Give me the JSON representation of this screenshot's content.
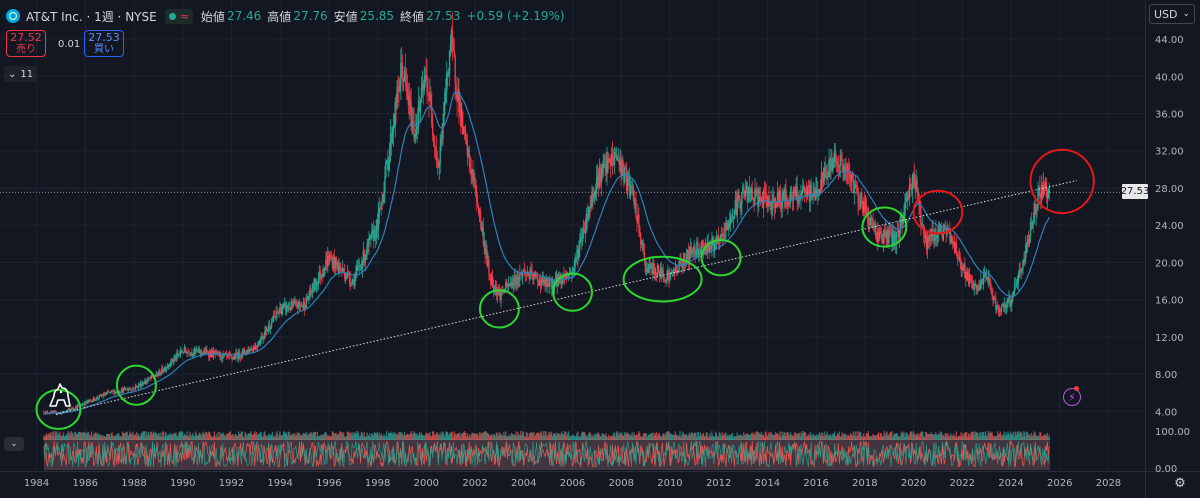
{
  "header": {
    "symbol_title": "AT&T Inc. · 1週 · NYSE",
    "open_label": "始値",
    "open": "27.46",
    "high_label": "高値",
    "high": "27.76",
    "low_label": "安値",
    "low": "25.85",
    "close_label": "終値",
    "close": "27.53",
    "change": "+0.59 (+2.19%)"
  },
  "trade": {
    "sell_price": "27.52",
    "sell_label": "売り",
    "spread": "0.01",
    "buy_price": "27.53",
    "buy_label": "買い"
  },
  "indicators": {
    "count": "11"
  },
  "currency": "USD",
  "last_price_tag": "27.53",
  "colors": {
    "bg": "#131722",
    "up": "#22ab94",
    "down": "#f23645",
    "ma": "#2f80b8",
    "green_circle": "#2fd62f",
    "red_circle": "#e3191c",
    "grid": "#1f2330",
    "vol_up": "#26a69a",
    "vol_down": "#ef5350",
    "rsi_band": "#6b4e58"
  },
  "icons": [
    "at-and-t-logo-icon",
    "tradingview-logo-icon",
    "chevron-down-icon",
    "flash-icon",
    "gear-icon"
  ],
  "chart_data": {
    "type": "candlestick",
    "timeframe": "1週",
    "x_range": [
      1982.5,
      2029.5
    ],
    "y_range": [
      2.2,
      48.2
    ],
    "y_ticks": [
      "4.00",
      "8.00",
      "12.00",
      "16.00",
      "20.00",
      "24.00",
      "28.00",
      "32.00",
      "36.00",
      "40.00",
      "44.00"
    ],
    "x_ticks": [
      "1984",
      "1986",
      "1988",
      "1990",
      "1992",
      "1994",
      "1996",
      "1998",
      "2000",
      "2002",
      "2004",
      "2006",
      "2008",
      "2010",
      "2012",
      "2014",
      "2016",
      "2018",
      "2020",
      "2022",
      "2024",
      "2026",
      "2028"
    ],
    "price_path": [
      [
        1984.3,
        3.9
      ],
      [
        1985,
        3.8
      ],
      [
        1986,
        4.9
      ],
      [
        1987,
        6.0
      ],
      [
        1988,
        6.5
      ],
      [
        1989,
        8.0
      ],
      [
        1990,
        10.5
      ],
      [
        1991,
        10.3
      ],
      [
        1992,
        9.7
      ],
      [
        1993,
        11.0
      ],
      [
        1994,
        15.0
      ],
      [
        1995,
        15.5
      ],
      [
        1996,
        20.5
      ],
      [
        1997,
        18.0
      ],
      [
        1998,
        24.0
      ],
      [
        1999,
        41.0
      ],
      [
        1999.5,
        34.0
      ],
      [
        2000,
        40.0
      ],
      [
        2000.5,
        30.0
      ],
      [
        2001,
        44.0
      ],
      [
        2001.5,
        34.0
      ],
      [
        2002,
        28.0
      ],
      [
        2002.6,
        18.5
      ],
      [
        2003,
        16.5
      ],
      [
        2004,
        19.0
      ],
      [
        2005,
        17.5
      ],
      [
        2006,
        19.0
      ],
      [
        2007,
        29.0
      ],
      [
        2007.8,
        31.5
      ],
      [
        2008.5,
        27.0
      ],
      [
        2009,
        19.5
      ],
      [
        2010,
        18.5
      ],
      [
        2011,
        21.5
      ],
      [
        2012,
        22.0
      ],
      [
        2013,
        27.5
      ],
      [
        2014,
        26.5
      ],
      [
        2015,
        27.0
      ],
      [
        2016,
        27.5
      ],
      [
        2016.8,
        31.5
      ],
      [
        2017.5,
        28.5
      ],
      [
        2018.5,
        23.0
      ],
      [
        2019.3,
        22.5
      ],
      [
        2020,
        29.5
      ],
      [
        2020.5,
        22.0
      ],
      [
        2021,
        23.5
      ],
      [
        2021.5,
        23.0
      ],
      [
        2022,
        19.5
      ],
      [
        2022.5,
        17.0
      ],
      [
        2023,
        18.5
      ],
      [
        2023.5,
        14.5
      ],
      [
        2024,
        16.0
      ],
      [
        2024.5,
        20.0
      ],
      [
        2024.9,
        25.0
      ],
      [
        2025.2,
        28.0
      ],
      [
        2025.6,
        27.5
      ]
    ],
    "trendline": [
      [
        1984.8,
        3.7
      ],
      [
        2026.7,
        28.8
      ]
    ],
    "green_circles": [
      {
        "x": 1984.9,
        "y": 4.2,
        "rx": 0.9,
        "ry": 2.1
      },
      {
        "x": 1988.1,
        "y": 6.8,
        "rx": 0.8,
        "ry": 2.1
      },
      {
        "x": 2003.0,
        "y": 15.0,
        "rx": 0.8,
        "ry": 2.0
      },
      {
        "x": 2006.0,
        "y": 16.8,
        "rx": 0.8,
        "ry": 2.0
      },
      {
        "x": 2009.7,
        "y": 18.2,
        "rx": 1.6,
        "ry": 2.4
      },
      {
        "x": 2012.1,
        "y": 20.5,
        "rx": 0.8,
        "ry": 1.9
      },
      {
        "x": 2018.8,
        "y": 23.8,
        "rx": 0.9,
        "ry": 2.1
      }
    ],
    "red_circles": [
      {
        "x": 2021.0,
        "y": 25.4,
        "rx": 1.0,
        "ry": 2.3
      },
      {
        "x": 2026.1,
        "y": 28.7,
        "rx": 1.3,
        "ry": 3.4
      }
    ],
    "lower_axis_ticks": [
      "100.00",
      "0.00"
    ]
  }
}
